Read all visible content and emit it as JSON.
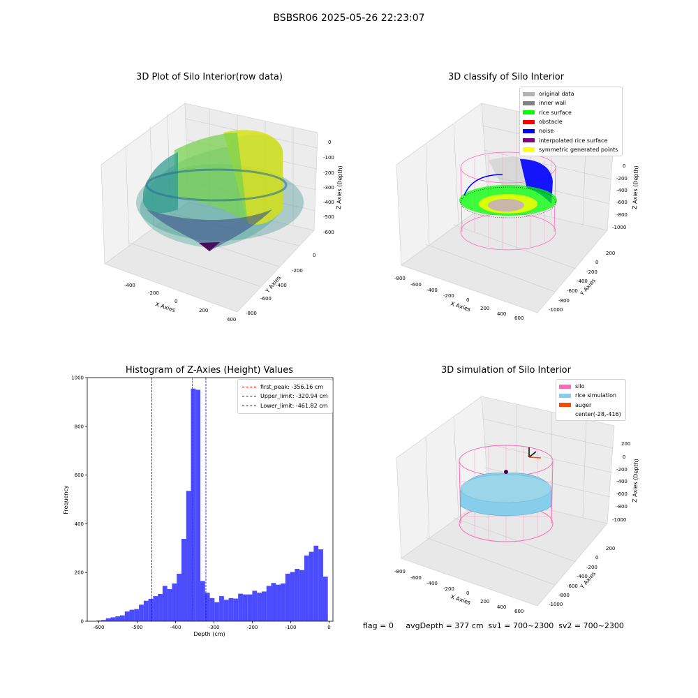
{
  "figure": {
    "suptitle": "BSBSR06 2025-05-26 22:23:07",
    "footer": "flag = 0     avgDepth = 377 cm  sv1 = 700~2300  sv2 = 700~2300"
  },
  "plots": {
    "raw": {
      "title": "3D Plot of Silo Interior(row data)",
      "xlabel": "X Axies",
      "ylabel": "Y Axies",
      "zlabel": "Z Axies (Depth)",
      "xticks": [
        "-400",
        "-200",
        "0",
        "200",
        "400"
      ],
      "yticks": [
        "0",
        "-200",
        "-400",
        "-600",
        "-800"
      ],
      "zticks": [
        "0",
        "-100",
        "-200",
        "-300",
        "-400",
        "-500",
        "-600"
      ]
    },
    "classify": {
      "title": "3D classify of Silo Interior",
      "xlabel": "X Axies",
      "ylabel": "Y Axies",
      "zlabel": "Z Axies (Depth)",
      "xticks": [
        "-800",
        "-600",
        "-400",
        "-200",
        "0",
        "200",
        "400",
        "600"
      ],
      "yticks": [
        "200",
        "0",
        "-200",
        "-400",
        "-600",
        "-800",
        "-1000"
      ],
      "zticks": [
        "0",
        "-200",
        "-400",
        "-600",
        "-800",
        "-1000"
      ],
      "legend": [
        {
          "label": "original data",
          "color": "#b3b3b3"
        },
        {
          "label": "inner wall",
          "color": "#808080"
        },
        {
          "label": "rice surface",
          "color": "#00ff00"
        },
        {
          "label": "obstacle",
          "color": "#ff0000"
        },
        {
          "label": "noise",
          "color": "#0000ff"
        },
        {
          "label": "interpolated rice surface",
          "color": "#800080"
        },
        {
          "label": "symmetric generated points",
          "color": "#ffff00"
        }
      ]
    },
    "simulation": {
      "title": "3D simulation of Silo Interior",
      "xlabel": "X Axies",
      "ylabel": "Y Axies",
      "zlabel": "Z Axies (Depth)",
      "xticks": [
        "-800",
        "-600",
        "-400",
        "-200",
        "0",
        "200",
        "400",
        "600"
      ],
      "yticks": [
        "200",
        "0",
        "-200",
        "-400",
        "-600",
        "-800",
        "-1000"
      ],
      "zticks": [
        "200",
        "0",
        "-200",
        "-400",
        "-600",
        "-800",
        "-1000"
      ],
      "legend": [
        {
          "label": "silo",
          "color": "#ff69b4"
        },
        {
          "label": "rice simulation",
          "color": "#87ceeb"
        },
        {
          "label": "auger",
          "color": "#ff4500"
        },
        {
          "label": "center(-28,-416)",
          "color": ""
        }
      ]
    }
  },
  "chart_data": {
    "type": "bar",
    "title": "Histogram of Z-Axies (Height) Values",
    "xlabel": "Depth (cm)",
    "ylabel": "Frequency",
    "xlim": [
      -630,
      10
    ],
    "ylim": [
      0,
      1000
    ],
    "xticks": [
      -600,
      -500,
      -400,
      -300,
      -200,
      -100,
      0
    ],
    "yticks": [
      0,
      200,
      400,
      600,
      800,
      1000
    ],
    "bar_color": "#0000ff",
    "bin_start": -606,
    "bin_width": 12.3,
    "values": [
      3,
      5,
      12,
      16,
      20,
      24,
      40,
      47,
      50,
      68,
      84,
      92,
      103,
      112,
      145,
      132,
      155,
      195,
      338,
      535,
      955,
      950,
      165,
      117,
      95,
      78,
      103,
      88,
      95,
      93,
      113,
      110,
      110,
      125,
      117,
      122,
      145,
      157,
      150,
      155,
      195,
      202,
      215,
      210,
      270,
      285,
      310,
      295,
      183
    ],
    "lines": [
      {
        "label": "first_peak: -356.16 cm",
        "x": -356.16,
        "color": "#ff0000"
      },
      {
        "label": "Upper_limit: -320.94 cm",
        "x": -320.94,
        "color": "#0000ff"
      },
      {
        "label": "Lower_limit: -461.82 cm",
        "x": -461.82,
        "color": "#0000ff"
      }
    ]
  }
}
